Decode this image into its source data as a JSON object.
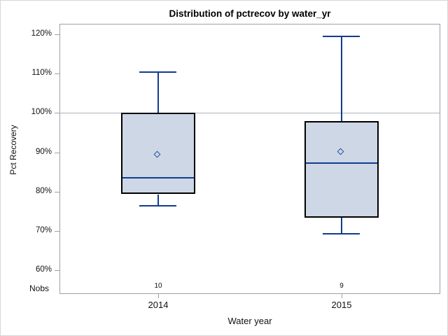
{
  "chart_data": {
    "type": "box",
    "title": "Distribution of pctrecov by water_yr",
    "xlabel": "Water year",
    "ylabel": "Pct Recovery",
    "nobs_label": "Nobs",
    "categories": [
      "2014",
      "2015"
    ],
    "nobs": [
      "10",
      "9"
    ],
    "y_ticks": [
      {
        "label": "120%",
        "value": 120
      },
      {
        "label": "110%",
        "value": 110
      },
      {
        "label": "100%",
        "value": 100
      },
      {
        "label": "90%",
        "value": 90
      },
      {
        "label": "80%",
        "value": 80
      },
      {
        "label": "70%",
        "value": 70
      },
      {
        "label": "60%",
        "value": 60
      }
    ],
    "ylim": [
      60,
      120
    ],
    "reference_line": 100,
    "grid": false,
    "legend": null,
    "series": [
      {
        "category": "2014",
        "nobs": 10,
        "whisker_low": 76.4,
        "q1": 79.3,
        "median": 83.5,
        "q3": 100.0,
        "whisker_high": 110.4,
        "mean": 89.3
      },
      {
        "category": "2015",
        "nobs": 9,
        "whisker_low": 69.3,
        "q1": 73.4,
        "median": 87.3,
        "q3": 97.9,
        "whisker_high": 119.4,
        "mean": 90.0
      }
    ],
    "colors": {
      "box_fill": "#cdd7e6",
      "box_border": "#000000",
      "whisker": "#123c8c",
      "median": "#123c8c",
      "mean_marker": "#2b52a3",
      "frame": "#9aa1a9",
      "reference_line": "#aeb3b9",
      "text": "#111111"
    }
  }
}
